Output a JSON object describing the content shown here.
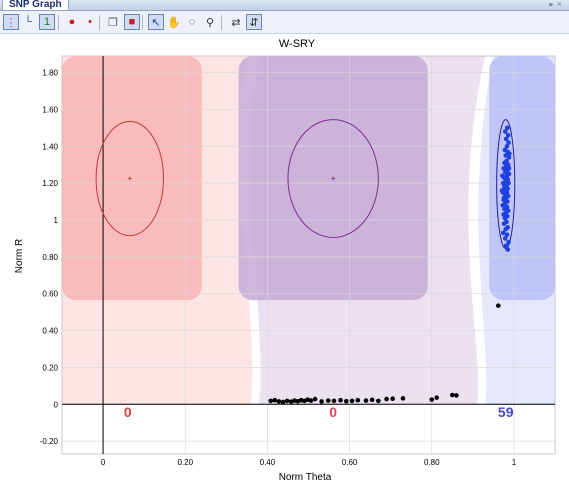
{
  "window": {
    "title": "SNP Graph"
  },
  "toolbar": {
    "items": [
      {
        "name": "cluster-view-icon",
        "glyph": "⋮",
        "selected": true
      },
      {
        "name": "axes-view-icon",
        "glyph": "└",
        "selected": false
      },
      {
        "name": "sample-count-icon",
        "glyph": "1",
        "selected": true
      },
      {
        "name": "large-dot-icon",
        "glyph": "●",
        "selected": false
      },
      {
        "name": "small-dot-icon",
        "glyph": "•",
        "selected": false
      },
      {
        "name": "copy-icon",
        "glyph": "❐",
        "selected": false
      },
      {
        "name": "color-toggle-icon",
        "glyph": "■",
        "selected": true
      },
      {
        "name": "pointer-icon",
        "glyph": "↖",
        "selected": true
      },
      {
        "name": "pan-hand-icon",
        "glyph": "✋",
        "selected": false
      },
      {
        "name": "lasso-icon",
        "glyph": "◌",
        "selected": false
      },
      {
        "name": "zoom-icon",
        "glyph": "⚲",
        "selected": false
      },
      {
        "name": "axis-swap-icon",
        "glyph": "⇄",
        "selected": false
      },
      {
        "name": "axis-range-icon",
        "glyph": "⇵",
        "selected": true
      }
    ]
  },
  "colors": {
    "aa_region": "#f8b4b4",
    "ab_region": "#c7aad6",
    "bb_region": "#b7bef5",
    "aa_ellipse": "#c03a3a",
    "ab_ellipse": "#7a2f8c",
    "bb_ellipse": "#2020a0",
    "aa_count": "#e04040",
    "ab_count": "#d04a60",
    "bb_count": "#4848c8",
    "bb_points": "#1f3fe0",
    "nocall_points": "#000000"
  },
  "chart_data": {
    "type": "scatter",
    "title": "W-SRY",
    "xlabel": "Norm Theta",
    "ylabel": "Norm R",
    "xlim": [
      -0.1,
      1.1
    ],
    "ylim": [
      -0.27,
      1.89
    ],
    "grid": true,
    "xticks": [
      0,
      0.2,
      0.4,
      0.6,
      0.8,
      1
    ],
    "xtick_labels": [
      "0",
      "0.20",
      "0.40",
      "0.60",
      "0.80",
      "1"
    ],
    "yticks": [
      -0.2,
      0,
      0.2,
      0.4,
      0.6,
      0.8,
      1,
      1.2,
      1.4,
      1.6,
      1.8
    ],
    "ytick_labels": [
      "-0.20",
      "0",
      "0.20",
      "0.40",
      "0.60",
      "0.80",
      "1",
      "1.20",
      "1.40",
      "1.60",
      "1.80"
    ],
    "cluster_counts": [
      {
        "genotype": "AA",
        "count": "0",
        "x": 0.06
      },
      {
        "genotype": "AB",
        "count": "0",
        "x": 0.56
      },
      {
        "genotype": "BB",
        "count": "59",
        "x": 0.98
      }
    ],
    "ellipses": [
      {
        "genotype": "AA",
        "cx": 0.065,
        "cy": 1.225,
        "rx": 0.082,
        "ry": 0.31
      },
      {
        "genotype": "AB",
        "cx": 0.56,
        "cy": 1.225,
        "rx": 0.11,
        "ry": 0.32
      },
      {
        "genotype": "BB",
        "cx": 0.98,
        "cy": 1.195,
        "rx": 0.022,
        "ry": 0.35
      }
    ],
    "series": [
      {
        "genotype": "BB",
        "points": [
          [
            0.984,
            1.5
          ],
          [
            0.979,
            1.48
          ],
          [
            0.986,
            1.46
          ],
          [
            0.981,
            1.44
          ],
          [
            0.987,
            1.42
          ],
          [
            0.983,
            1.4
          ],
          [
            0.978,
            1.38
          ],
          [
            0.985,
            1.37
          ],
          [
            0.98,
            1.35
          ],
          [
            0.988,
            1.34
          ],
          [
            0.982,
            1.32
          ],
          [
            0.977,
            1.31
          ],
          [
            0.986,
            1.3
          ],
          [
            0.981,
            1.29
          ],
          [
            0.975,
            1.28
          ],
          [
            0.984,
            1.27
          ],
          [
            0.979,
            1.26
          ],
          [
            0.988,
            1.25
          ],
          [
            0.983,
            1.24
          ],
          [
            0.976,
            1.23
          ],
          [
            0.985,
            1.22
          ],
          [
            0.98,
            1.21
          ],
          [
            0.974,
            1.2
          ],
          [
            0.987,
            1.2
          ],
          [
            0.982,
            1.19
          ],
          [
            0.977,
            1.18
          ],
          [
            0.985,
            1.17
          ],
          [
            0.979,
            1.16
          ],
          [
            0.973,
            1.15
          ],
          [
            0.983,
            1.15
          ],
          [
            0.978,
            1.14
          ],
          [
            0.986,
            1.13
          ],
          [
            0.981,
            1.12
          ],
          [
            0.975,
            1.11
          ],
          [
            0.984,
            1.1
          ],
          [
            0.979,
            1.09
          ],
          [
            0.973,
            1.08
          ],
          [
            0.983,
            1.07
          ],
          [
            0.977,
            1.06
          ],
          [
            0.986,
            1.05
          ],
          [
            0.981,
            1.04
          ],
          [
            0.975,
            1.03
          ],
          [
            0.984,
            1.02
          ],
          [
            0.978,
            1.01
          ],
          [
            0.982,
            0.99
          ],
          [
            0.976,
            0.98
          ],
          [
            0.985,
            0.96
          ],
          [
            0.98,
            0.95
          ],
          [
            0.974,
            0.93
          ],
          [
            0.983,
            0.92
          ],
          [
            0.979,
            0.9
          ],
          [
            0.987,
            0.88
          ],
          [
            0.981,
            0.86
          ],
          [
            0.985,
            0.84
          ],
          [
            0.976,
            1.12
          ],
          [
            0.988,
            1.28
          ],
          [
            0.972,
            1.24
          ],
          [
            0.989,
            1.36
          ],
          [
            0.971,
            1.16
          ]
        ]
      },
      {
        "genotype": "NC",
        "points": [
          [
            0.962,
            0.535
          ],
          [
            0.408,
            0.018
          ],
          [
            0.418,
            0.022
          ],
          [
            0.428,
            0.015
          ],
          [
            0.438,
            0.012
          ],
          [
            0.448,
            0.018
          ],
          [
            0.458,
            0.014
          ],
          [
            0.466,
            0.02
          ],
          [
            0.474,
            0.016
          ],
          [
            0.482,
            0.022
          ],
          [
            0.49,
            0.018
          ],
          [
            0.498,
            0.025
          ],
          [
            0.506,
            0.02
          ],
          [
            0.516,
            0.028
          ],
          [
            0.532,
            0.015
          ],
          [
            0.548,
            0.02
          ],
          [
            0.562,
            0.018
          ],
          [
            0.578,
            0.022
          ],
          [
            0.592,
            0.016
          ],
          [
            0.606,
            0.018
          ],
          [
            0.62,
            0.022
          ],
          [
            0.64,
            0.02
          ],
          [
            0.655,
            0.024
          ],
          [
            0.67,
            0.018
          ],
          [
            0.69,
            0.028
          ],
          [
            0.705,
            0.03
          ],
          [
            0.73,
            0.032
          ],
          [
            0.8,
            0.025
          ],
          [
            0.812,
            0.036
          ],
          [
            0.85,
            0.05
          ],
          [
            0.86,
            0.048
          ]
        ]
      }
    ]
  }
}
